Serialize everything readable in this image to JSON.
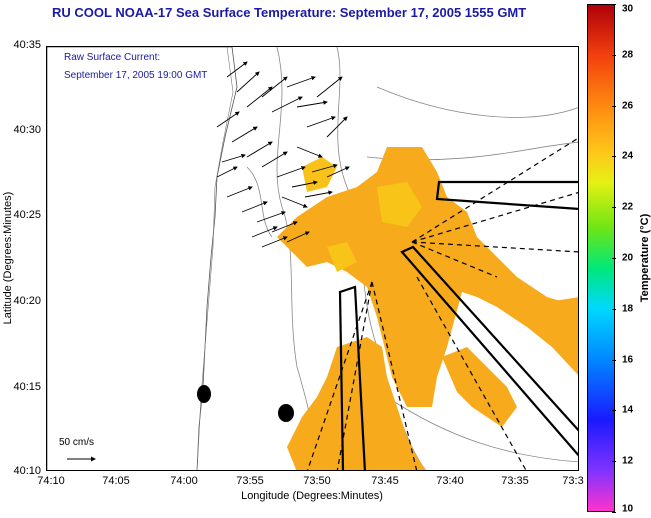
{
  "title": "RU COOL  NOAA-17  Sea Surface Temperature:  September 17, 2005 1555 GMT",
  "legend": {
    "line1": "Raw Surface Current:",
    "line2": "September 17, 2005 19:00 GMT"
  },
  "scale_label": "50 cm/s",
  "axes": {
    "xlabel": "Longitude (Degrees:Minutes)",
    "ylabel": "Latitude (Degrees:Minutes)",
    "x_ticks": [
      "74:10",
      "74:05",
      "74:00",
      "73:55",
      "73:50",
      "73:45",
      "73:40",
      "73:35",
      "73:3"
    ],
    "y_ticks": [
      "40:35",
      "40:30",
      "40:25",
      "40:20",
      "40:15",
      "40:10"
    ]
  },
  "colorbar": {
    "label": "Temperature (°C)",
    "ticks": [
      "30",
      "28",
      "26",
      "24",
      "22",
      "20",
      "18",
      "16",
      "14",
      "12",
      "10"
    ],
    "range": [
      10,
      30
    ]
  },
  "colors": {
    "title_text": "#1a1aa6",
    "sst_warm": "#f5a31a",
    "sst_mid": "#f8b518",
    "sst_cool": "#f7c518"
  }
}
